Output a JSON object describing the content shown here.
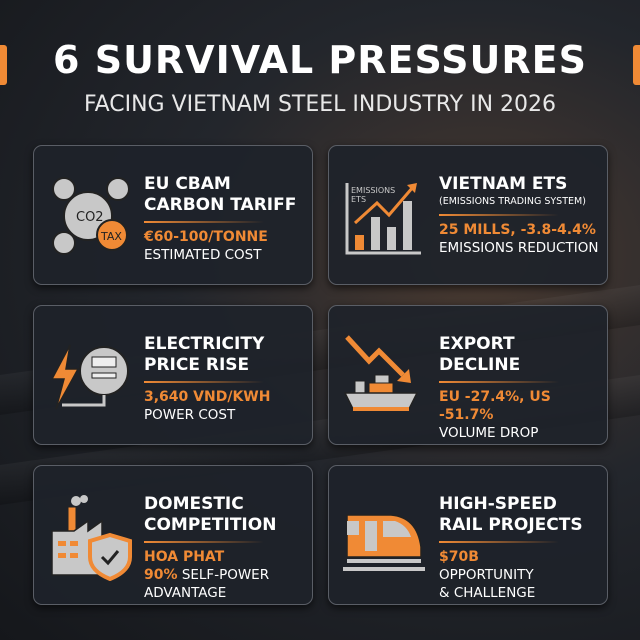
{
  "header": {
    "title": "6 SURVIVAL PRESSURES",
    "subtitle": "FACING VIETNAM STEEL INDUSTRY IN 2026"
  },
  "colors": {
    "accent": "#f08a35",
    "card": "#1e222a",
    "text": "#ffffff"
  },
  "cards": [
    {
      "icon": "co2-tax-icon",
      "title1": "EU CBAM",
      "title2": "CARBON TARIFF",
      "highlight": "€60-100/TONNE",
      "desc": "ESTIMATED COST",
      "icon_text": {
        "co2": "CO2",
        "tax": "TAX"
      }
    },
    {
      "icon": "emissions-chart-icon",
      "title1": "VIETNAM ETS",
      "title2": "(EMISSIONS TRADING SYSTEM)",
      "highlight": "25 MILLS, -3.8-4.4%",
      "desc": "EMISSIONS REDUCTION",
      "icon_text": {
        "label1": "EMISSIONS",
        "label2": "ETS"
      }
    },
    {
      "icon": "electricity-meter-icon",
      "title1": "ELECTRICITY",
      "title2": "PRICE RISE",
      "highlight": "3,640 VND/KWH",
      "desc": "POWER COST"
    },
    {
      "icon": "export-decline-ship-icon",
      "title1": "EXPORT",
      "title2": "DECLINE",
      "highlight": "EU -27.4%, US -51.7%",
      "desc": "VOLUME DROP"
    },
    {
      "icon": "factory-shield-icon",
      "title1": "DOMESTIC",
      "title2": "COMPETITION",
      "highlight": "HOA PHAT",
      "highlight2": "90%",
      "desc": "SELF-POWER",
      "desc2": "ADVANTAGE"
    },
    {
      "icon": "high-speed-train-icon",
      "title1": "HIGH-SPEED",
      "title2": "RAIL PROJECTS",
      "highlight": "$70B",
      "desc": "OPPORTUNITY",
      "desc2": "& CHALLENGE"
    }
  ]
}
